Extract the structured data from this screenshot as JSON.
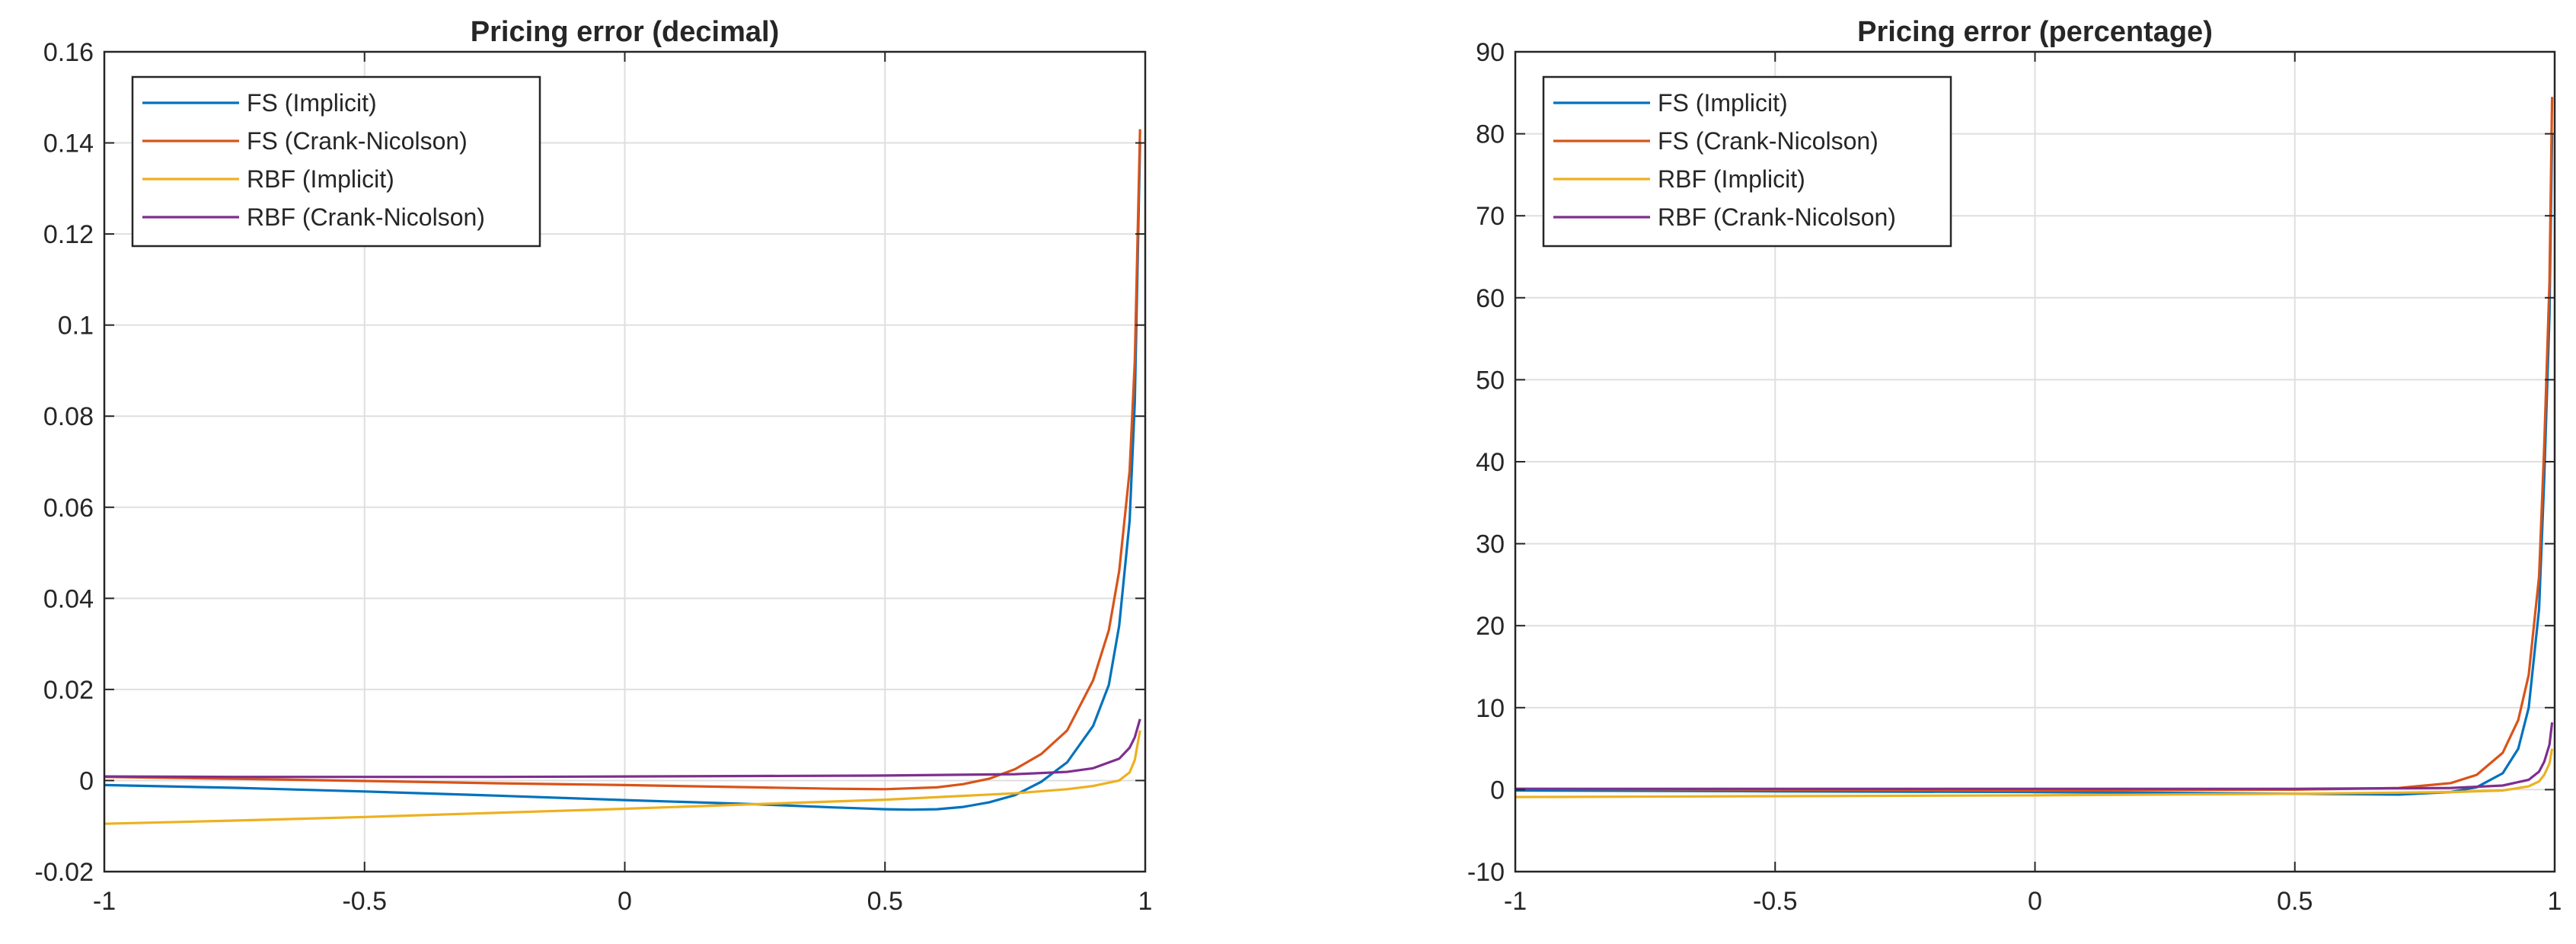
{
  "chart_data": [
    {
      "type": "line",
      "title": "Pricing error (decimal)",
      "xlabel": "",
      "ylabel": "",
      "xlim": [
        -1,
        1
      ],
      "ylim": [
        -0.02,
        0.16
      ],
      "xticks": [
        -1,
        -0.5,
        0,
        0.5,
        1
      ],
      "xtick_labels": [
        "-1",
        "-0.5",
        "0",
        "0.5",
        "1"
      ],
      "yticks": [
        -0.02,
        0,
        0.02,
        0.04,
        0.06,
        0.08,
        0.1,
        0.12,
        0.14,
        0.16
      ],
      "ytick_labels": [
        "-0.02",
        "0",
        "0.02",
        "0.04",
        "0.06",
        "0.08",
        "0.1",
        "0.12",
        "0.14",
        "0.16"
      ],
      "grid": true,
      "legend_position": "top-left",
      "series": [
        {
          "name": "FS (Implicit)",
          "color": "#0072BD",
          "x": [
            -1,
            -0.75,
            -0.5,
            -0.25,
            0,
            0.25,
            0.4,
            0.5,
            0.55,
            0.6,
            0.65,
            0.7,
            0.75,
            0.8,
            0.85,
            0.9,
            0.93,
            0.95,
            0.97,
            0.98,
            0.99
          ],
          "y": [
            -0.001,
            -0.0016,
            -0.0024,
            -0.0033,
            -0.0043,
            -0.0052,
            -0.0059,
            -0.0063,
            -0.0064,
            -0.0063,
            -0.0058,
            -0.0048,
            -0.0032,
            -0.0003,
            0.004,
            0.012,
            0.021,
            0.034,
            0.057,
            0.083,
            0.14
          ]
        },
        {
          "name": "FS (Crank-Nicolson)",
          "color": "#D95319",
          "x": [
            -1,
            -0.75,
            -0.5,
            -0.25,
            0,
            0.25,
            0.4,
            0.5,
            0.6,
            0.65,
            0.7,
            0.75,
            0.8,
            0.85,
            0.9,
            0.93,
            0.95,
            0.97,
            0.98,
            0.99
          ],
          "y": [
            0.0008,
            0.0004,
            -0.0001,
            -0.0006,
            -0.001,
            -0.0015,
            -0.0018,
            -0.0019,
            -0.0015,
            -0.0008,
            0.0004,
            0.0025,
            0.0058,
            0.011,
            0.022,
            0.033,
            0.046,
            0.068,
            0.092,
            0.143
          ]
        },
        {
          "name": "RBF (Implicit)",
          "color": "#EDB120",
          "x": [
            -1,
            -0.75,
            -0.5,
            -0.25,
            0,
            0.25,
            0.5,
            0.75,
            0.85,
            0.9,
            0.95,
            0.97,
            0.98,
            0.99
          ],
          "y": [
            -0.0095,
            -0.0088,
            -0.008,
            -0.0071,
            -0.0062,
            -0.0052,
            -0.0042,
            -0.0028,
            -0.0019,
            -0.0012,
            0.0,
            0.0018,
            0.0045,
            0.011
          ]
        },
        {
          "name": "RBF (Crank-Nicolson)",
          "color": "#7E2F8E",
          "x": [
            -1,
            -0.75,
            -0.5,
            -0.25,
            0,
            0.25,
            0.5,
            0.75,
            0.85,
            0.9,
            0.95,
            0.97,
            0.98,
            0.99
          ],
          "y": [
            0.0009,
            0.0008,
            0.0008,
            0.0008,
            0.0009,
            0.001,
            0.0011,
            0.0014,
            0.0019,
            0.0027,
            0.0048,
            0.0072,
            0.0095,
            0.0135
          ]
        }
      ]
    },
    {
      "type": "line",
      "title": "Pricing error (percentage)",
      "xlabel": "",
      "ylabel": "",
      "xlim": [
        -1,
        1
      ],
      "ylim": [
        -10,
        90
      ],
      "xticks": [
        -1,
        -0.5,
        0,
        0.5,
        1
      ],
      "xtick_labels": [
        "-1",
        "-0.5",
        "0",
        "0.5",
        "1"
      ],
      "yticks": [
        -10,
        0,
        10,
        20,
        30,
        40,
        50,
        60,
        70,
        80,
        90
      ],
      "ytick_labels": [
        "-10",
        "0",
        "10",
        "20",
        "30",
        "40",
        "50",
        "60",
        "70",
        "80",
        "90"
      ],
      "grid": true,
      "legend_position": "top-left",
      "series": [
        {
          "name": "FS (Implicit)",
          "color": "#0072BD",
          "x": [
            -1,
            -0.5,
            0,
            0.5,
            0.7,
            0.8,
            0.85,
            0.9,
            0.93,
            0.95,
            0.97,
            0.98,
            0.99,
            0.995
          ],
          "y": [
            -0.1,
            -0.2,
            -0.3,
            -0.5,
            -0.6,
            -0.3,
            0.3,
            2.0,
            5.0,
            10.0,
            22.0,
            38.0,
            58.0,
            80.0
          ]
        },
        {
          "name": "FS (Crank-Nicolson)",
          "color": "#D95319",
          "x": [
            -1,
            -0.5,
            0,
            0.5,
            0.7,
            0.8,
            0.85,
            0.9,
            0.93,
            0.95,
            0.97,
            0.98,
            0.99,
            0.995
          ],
          "y": [
            0.1,
            0.0,
            -0.1,
            0.0,
            0.2,
            0.8,
            1.8,
            4.5,
            8.5,
            14.0,
            26.0,
            42.0,
            62.0,
            84.5
          ]
        },
        {
          "name": "RBF (Implicit)",
          "color": "#EDB120",
          "x": [
            -1,
            -0.5,
            0,
            0.5,
            0.8,
            0.9,
            0.95,
            0.97,
            0.98,
            0.99,
            0.995
          ],
          "y": [
            -0.9,
            -0.8,
            -0.7,
            -0.5,
            -0.3,
            -0.1,
            0.4,
            1.0,
            1.8,
            3.2,
            5.0
          ]
        },
        {
          "name": "RBF (Crank-Nicolson)",
          "color": "#7E2F8E",
          "x": [
            -1,
            -0.5,
            0,
            0.5,
            0.8,
            0.9,
            0.95,
            0.97,
            0.98,
            0.99,
            0.995
          ],
          "y": [
            0.1,
            0.1,
            0.1,
            0.1,
            0.2,
            0.5,
            1.2,
            2.2,
            3.4,
            5.5,
            8.2
          ]
        }
      ]
    }
  ]
}
